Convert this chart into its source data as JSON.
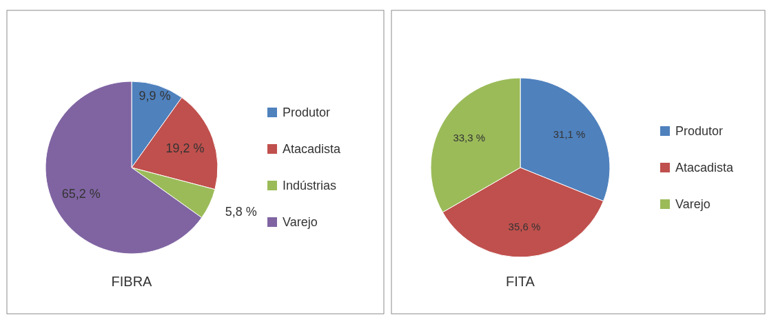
{
  "chart_data": [
    {
      "type": "pie",
      "title": "FIBRA",
      "categories": [
        "Produtor",
        "Atacadista",
        "Indústrias",
        "Varejo"
      ],
      "values": [
        9.9,
        19.2,
        5.8,
        65.2
      ],
      "value_labels": [
        "9,9 %",
        "19,2 %",
        "5,8 %",
        "65,2 %"
      ],
      "colors": [
        "#4f81bd",
        "#c0504d",
        "#9bbb59",
        "#8064a2"
      ],
      "legend": "right"
    },
    {
      "type": "pie",
      "title": "FITA",
      "categories": [
        "Produtor",
        "Atacadista",
        "Varejo"
      ],
      "values": [
        31.1,
        35.6,
        33.3
      ],
      "value_labels": [
        "31,1 %",
        "35,6 %",
        "33,3 %"
      ],
      "colors": [
        "#4f81bd",
        "#c0504d",
        "#9bbb59"
      ],
      "legend": "right"
    }
  ]
}
